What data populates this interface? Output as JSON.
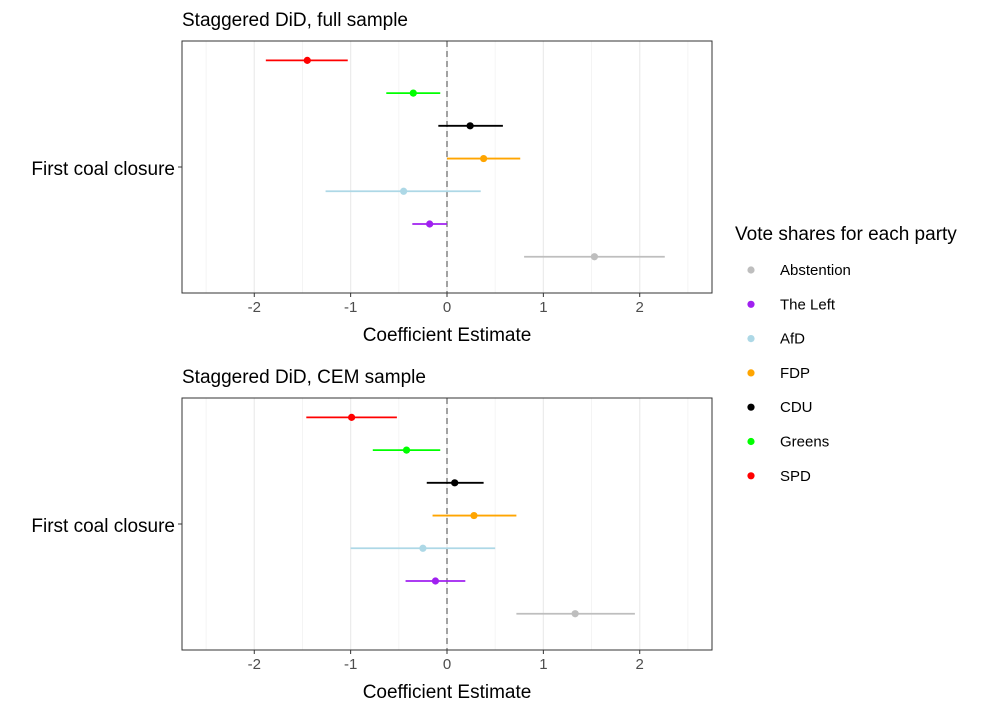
{
  "legend": {
    "title": "Vote shares for each party",
    "items": [
      {
        "name": "Abstention",
        "color": "#bebebe"
      },
      {
        "name": "The Left",
        "color": "#a020f0"
      },
      {
        "name": "AfD",
        "color": "#add8e6"
      },
      {
        "name": "FDP",
        "color": "#ffa500"
      },
      {
        "name": "CDU",
        "color": "#000000"
      },
      {
        "name": "Greens",
        "color": "#00ff00"
      },
      {
        "name": "SPD",
        "color": "#ff0000"
      }
    ]
  },
  "chart_data": [
    {
      "type": "scatter",
      "title": "Staggered DiD, full sample",
      "xlabel": "Coefficient Estimate",
      "ylabel_category": "First coal closure",
      "xlim": [
        -2.75,
        2.75
      ],
      "xticks": [
        -2,
        -1,
        0,
        1,
        2
      ],
      "reference_line_x": 0,
      "series": [
        {
          "name": "SPD",
          "estimate": -1.45,
          "ci_low": -1.88,
          "ci_high": -1.03
        },
        {
          "name": "Greens",
          "estimate": -0.35,
          "ci_low": -0.63,
          "ci_high": -0.07
        },
        {
          "name": "CDU",
          "estimate": 0.24,
          "ci_low": -0.09,
          "ci_high": 0.58
        },
        {
          "name": "FDP",
          "estimate": 0.38,
          "ci_low": 0.0,
          "ci_high": 0.76
        },
        {
          "name": "AfD",
          "estimate": -0.45,
          "ci_low": -1.26,
          "ci_high": 0.35
        },
        {
          "name": "The Left",
          "estimate": -0.18,
          "ci_low": -0.36,
          "ci_high": 0.0
        },
        {
          "name": "Abstention",
          "estimate": 1.53,
          "ci_low": 0.8,
          "ci_high": 2.26
        }
      ]
    },
    {
      "type": "scatter",
      "title": "Staggered DiD, CEM sample",
      "xlabel": "Coefficient Estimate",
      "ylabel_category": "First coal closure",
      "xlim": [
        -2.75,
        2.75
      ],
      "xticks": [
        -2,
        -1,
        0,
        1,
        2
      ],
      "reference_line_x": 0,
      "series": [
        {
          "name": "SPD",
          "estimate": -0.99,
          "ci_low": -1.46,
          "ci_high": -0.52
        },
        {
          "name": "Greens",
          "estimate": -0.42,
          "ci_low": -0.77,
          "ci_high": -0.07
        },
        {
          "name": "CDU",
          "estimate": 0.08,
          "ci_low": -0.21,
          "ci_high": 0.38
        },
        {
          "name": "FDP",
          "estimate": 0.28,
          "ci_low": -0.15,
          "ci_high": 0.72
        },
        {
          "name": "AfD",
          "estimate": -0.25,
          "ci_low": -1.0,
          "ci_high": 0.5
        },
        {
          "name": "The Left",
          "estimate": -0.12,
          "ci_low": -0.43,
          "ci_high": 0.19
        },
        {
          "name": "Abstention",
          "estimate": 1.33,
          "ci_low": 0.72,
          "ci_high": 1.95
        }
      ]
    }
  ]
}
